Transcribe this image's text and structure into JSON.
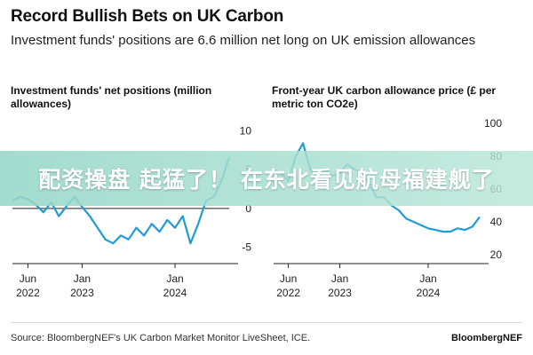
{
  "header": {
    "title": "Record Bullish Bets on UK Carbon",
    "subtitle": "Investment funds' positions are 6.6 million net long on UK emission allowances"
  },
  "overlay": {
    "text": "配资操盘 起猛了！ 在东北看见航母福建舰了"
  },
  "footer": {
    "source": "Source: BloombergNEF's UK Carbon Market Monitor LiveSheet, ICE.",
    "brand": "BloombergNEF"
  },
  "colors": {
    "line": "#1f9bd6",
    "zero_line": "#222222",
    "axis": "#222222"
  },
  "chart_data": [
    {
      "type": "line",
      "title": "Investment funds' net positions (million allowances)",
      "x_ticks": [
        {
          "label": "Jun\n2022",
          "date": "2022-06"
        },
        {
          "label": "Jan\n2023",
          "date": "2023-01"
        },
        {
          "label": "Jan\n2024",
          "date": "2024-01"
        }
      ],
      "xlim": [
        "2022-04",
        "2024-08"
      ],
      "ylim": [
        -7,
        12
      ],
      "y_ticks": [
        10,
        5,
        0,
        -5
      ],
      "y_axis_side": "right",
      "zero_line": true,
      "series": [
        {
          "x": [
            "2022-04",
            "2022-05",
            "2022-06",
            "2022-07",
            "2022-08",
            "2022-09",
            "2022-10",
            "2022-11",
            "2022-12",
            "2023-01",
            "2023-02",
            "2023-03",
            "2023-04",
            "2023-05",
            "2023-06",
            "2023-07",
            "2023-08",
            "2023-09",
            "2023-10",
            "2023-11",
            "2023-12",
            "2024-01",
            "2024-02",
            "2024-03",
            "2024-04",
            "2024-05",
            "2024-06",
            "2024-07",
            "2024-08"
          ],
          "y": [
            1.0,
            1.5,
            1.2,
            0.5,
            -0.5,
            0.8,
            -1.0,
            0.3,
            1.5,
            0.2,
            -1.0,
            -2.5,
            -4.0,
            -4.5,
            -3.5,
            -4.0,
            -2.5,
            -3.5,
            -2.0,
            -3.0,
            -1.5,
            -2.5,
            -1.0,
            -4.5,
            -2.0,
            1.0,
            1.5,
            3.5,
            6.6
          ]
        }
      ]
    },
    {
      "type": "line",
      "title": "Front-year UK carbon allowance price (£ per metric ton CO2e)",
      "x_ticks": [
        {
          "label": "Jun\n2022",
          "date": "2022-06"
        },
        {
          "label": "Jan\n2023",
          "date": "2023-01"
        },
        {
          "label": "Jan\n2024",
          "date": "2024-01"
        }
      ],
      "xlim": [
        "2022-04",
        "2024-08"
      ],
      "ylim": [
        15,
        105
      ],
      "y_ticks": [
        100,
        80,
        60,
        40,
        20
      ],
      "y_axis_side": "right",
      "series": [
        {
          "x": [
            "2022-04",
            "2022-05",
            "2022-06",
            "2022-07",
            "2022-08",
            "2022-09",
            "2022-10",
            "2022-11",
            "2022-12",
            "2023-01",
            "2023-02",
            "2023-03",
            "2023-04",
            "2023-05",
            "2023-06",
            "2023-07",
            "2023-08",
            "2023-09",
            "2023-10",
            "2023-11",
            "2023-12",
            "2024-01",
            "2024-02",
            "2024-03",
            "2024-04",
            "2024-05",
            "2024-06",
            "2024-07",
            "2024-08"
          ],
          "y": [
            72,
            70,
            65,
            80,
            88,
            72,
            66,
            72,
            68,
            70,
            75,
            72,
            70,
            63,
            55,
            55,
            50,
            47,
            42,
            40,
            38,
            36,
            35,
            34,
            34,
            36,
            35,
            37,
            43
          ]
        }
      ]
    }
  ]
}
